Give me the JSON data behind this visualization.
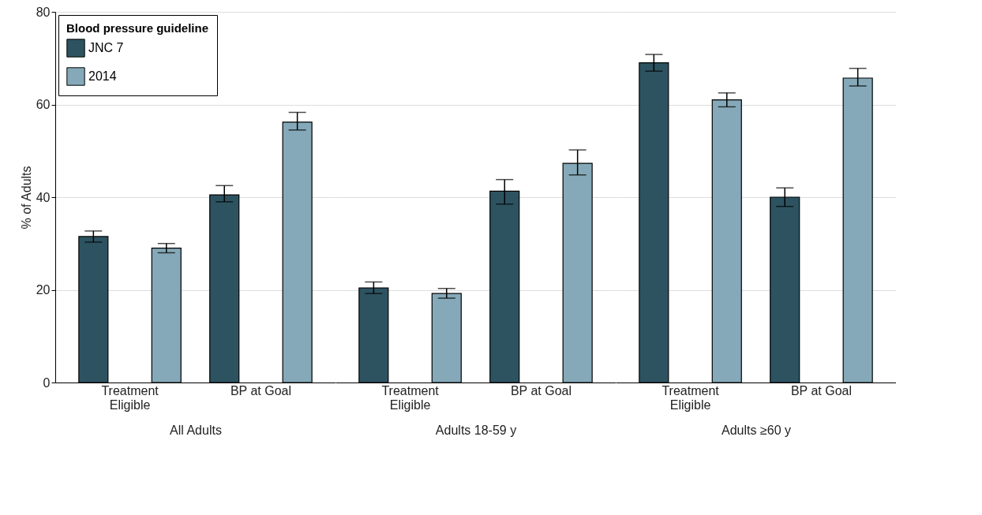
{
  "chart_data": [
    {
      "type": "bar",
      "xlabel": "All Adults",
      "ylabel": "% of Adults",
      "legend_title": "Blood pressure guideline",
      "legend": "top left",
      "grid": "y",
      "categories": [
        "Treatment Eligible",
        "BP at Goal"
      ],
      "ylim": [
        0,
        80
      ],
      "yticks": [
        0,
        20,
        40,
        60,
        80
      ],
      "series": [
        {
          "name": "JNC 7",
          "color": "#2d5361",
          "values": [
            31.5,
            40.5
          ],
          "errors": [
            [
              30.3,
              32.7
            ],
            [
              39,
              42.5
            ]
          ]
        },
        {
          "name": "2014",
          "color": "#85a9b8",
          "values": [
            29,
            56.2
          ],
          "errors": [
            [
              28,
              30
            ],
            [
              54.5,
              58.3
            ]
          ]
        }
      ]
    },
    {
      "type": "bar",
      "xlabel": "Adults 18-59 y",
      "grid": "y",
      "tick_labels": "x",
      "categories": [
        "Treatment Eligible",
        "BP at Goal"
      ],
      "ylim": [
        0,
        80
      ],
      "yticks": [
        0,
        20,
        40,
        60,
        80
      ],
      "series": [
        {
          "color": "#2d5361",
          "values": [
            20.4,
            41.3
          ],
          "errors": [
            [
              19.2,
              21.7
            ],
            [
              38.5,
              43.8
            ]
          ]
        },
        {
          "color": "#85a9b8",
          "values": [
            19.2,
            47.3
          ],
          "errors": [
            [
              18.2,
              20.3
            ],
            [
              44.8,
              50.2
            ]
          ]
        }
      ]
    },
    {
      "type": "bar",
      "xlabel": "Adults ≥60 y",
      "grid": "y",
      "tick_labels": "x",
      "categories": [
        "Treatment Eligible",
        "BP at Goal"
      ],
      "ylim": [
        0,
        80
      ],
      "yticks": [
        0,
        20,
        40,
        60,
        80
      ],
      "series": [
        {
          "color": "#2d5361",
          "values": [
            69,
            40
          ],
          "errors": [
            [
              67.2,
              70.8
            ],
            [
              38,
              42
            ]
          ]
        },
        {
          "color": "#85a9b8",
          "values": [
            61,
            65.7
          ],
          "errors": [
            [
              59.5,
              62.5
            ],
            [
              64,
              67.8
            ]
          ]
        }
      ]
    }
  ]
}
